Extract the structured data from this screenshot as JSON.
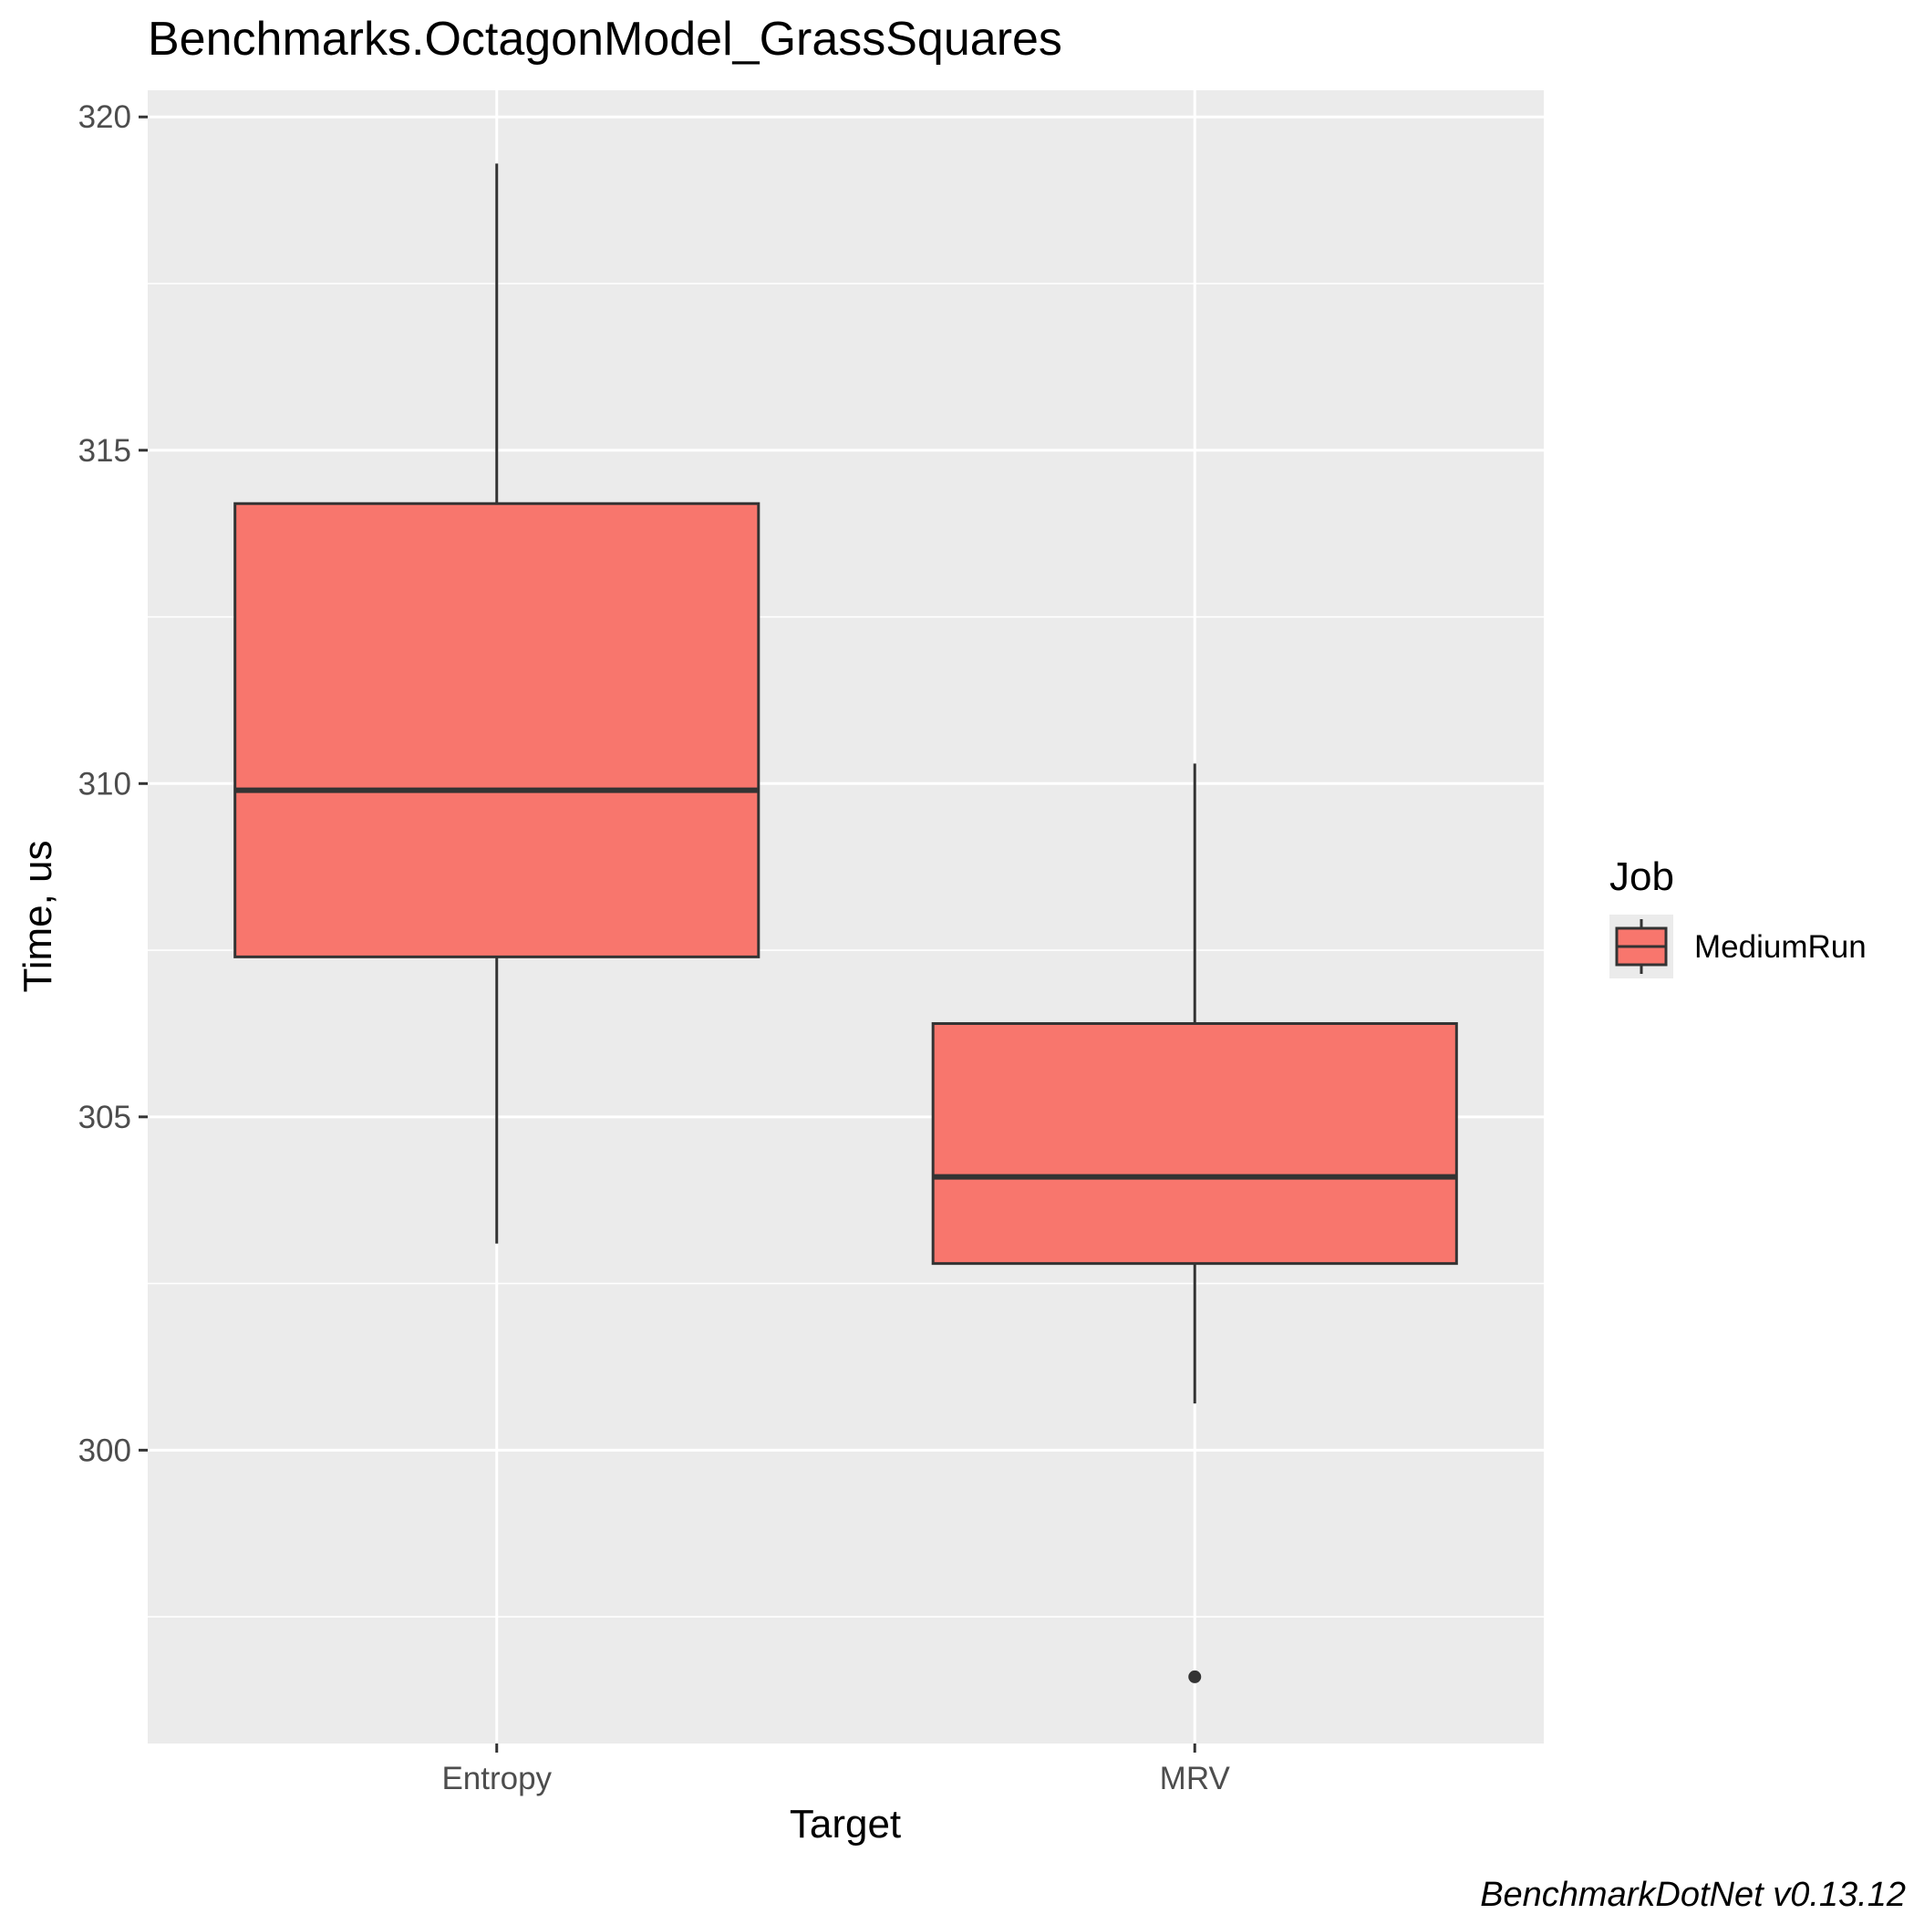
{
  "chart_data": {
    "type": "box",
    "title": "Benchmarks.OctagonModel_GrassSquares",
    "xlabel": "Target",
    "ylabel": "Time, us",
    "caption": "BenchmarkDotNet v0.13.12",
    "categories": [
      "Entropy",
      "MRV"
    ],
    "y_ticks": [
      300,
      305,
      310,
      315,
      320
    ],
    "ylim": [
      295.6,
      320.4
    ],
    "grid": true,
    "legend": {
      "title": "Job",
      "position": "right",
      "entries": [
        "MediumRun"
      ]
    },
    "series": [
      {
        "name": "MediumRun",
        "color": "#f8766d",
        "boxes": [
          {
            "category": "Entropy",
            "whisker_low": 303.1,
            "q1": 307.4,
            "median": 309.9,
            "q3": 314.2,
            "whisker_high": 319.3,
            "outliers": []
          },
          {
            "category": "MRV",
            "whisker_low": 300.7,
            "q1": 302.8,
            "median": 304.1,
            "q3": 306.4,
            "whisker_high": 310.3,
            "outliers": [
              296.6
            ]
          }
        ]
      }
    ]
  }
}
